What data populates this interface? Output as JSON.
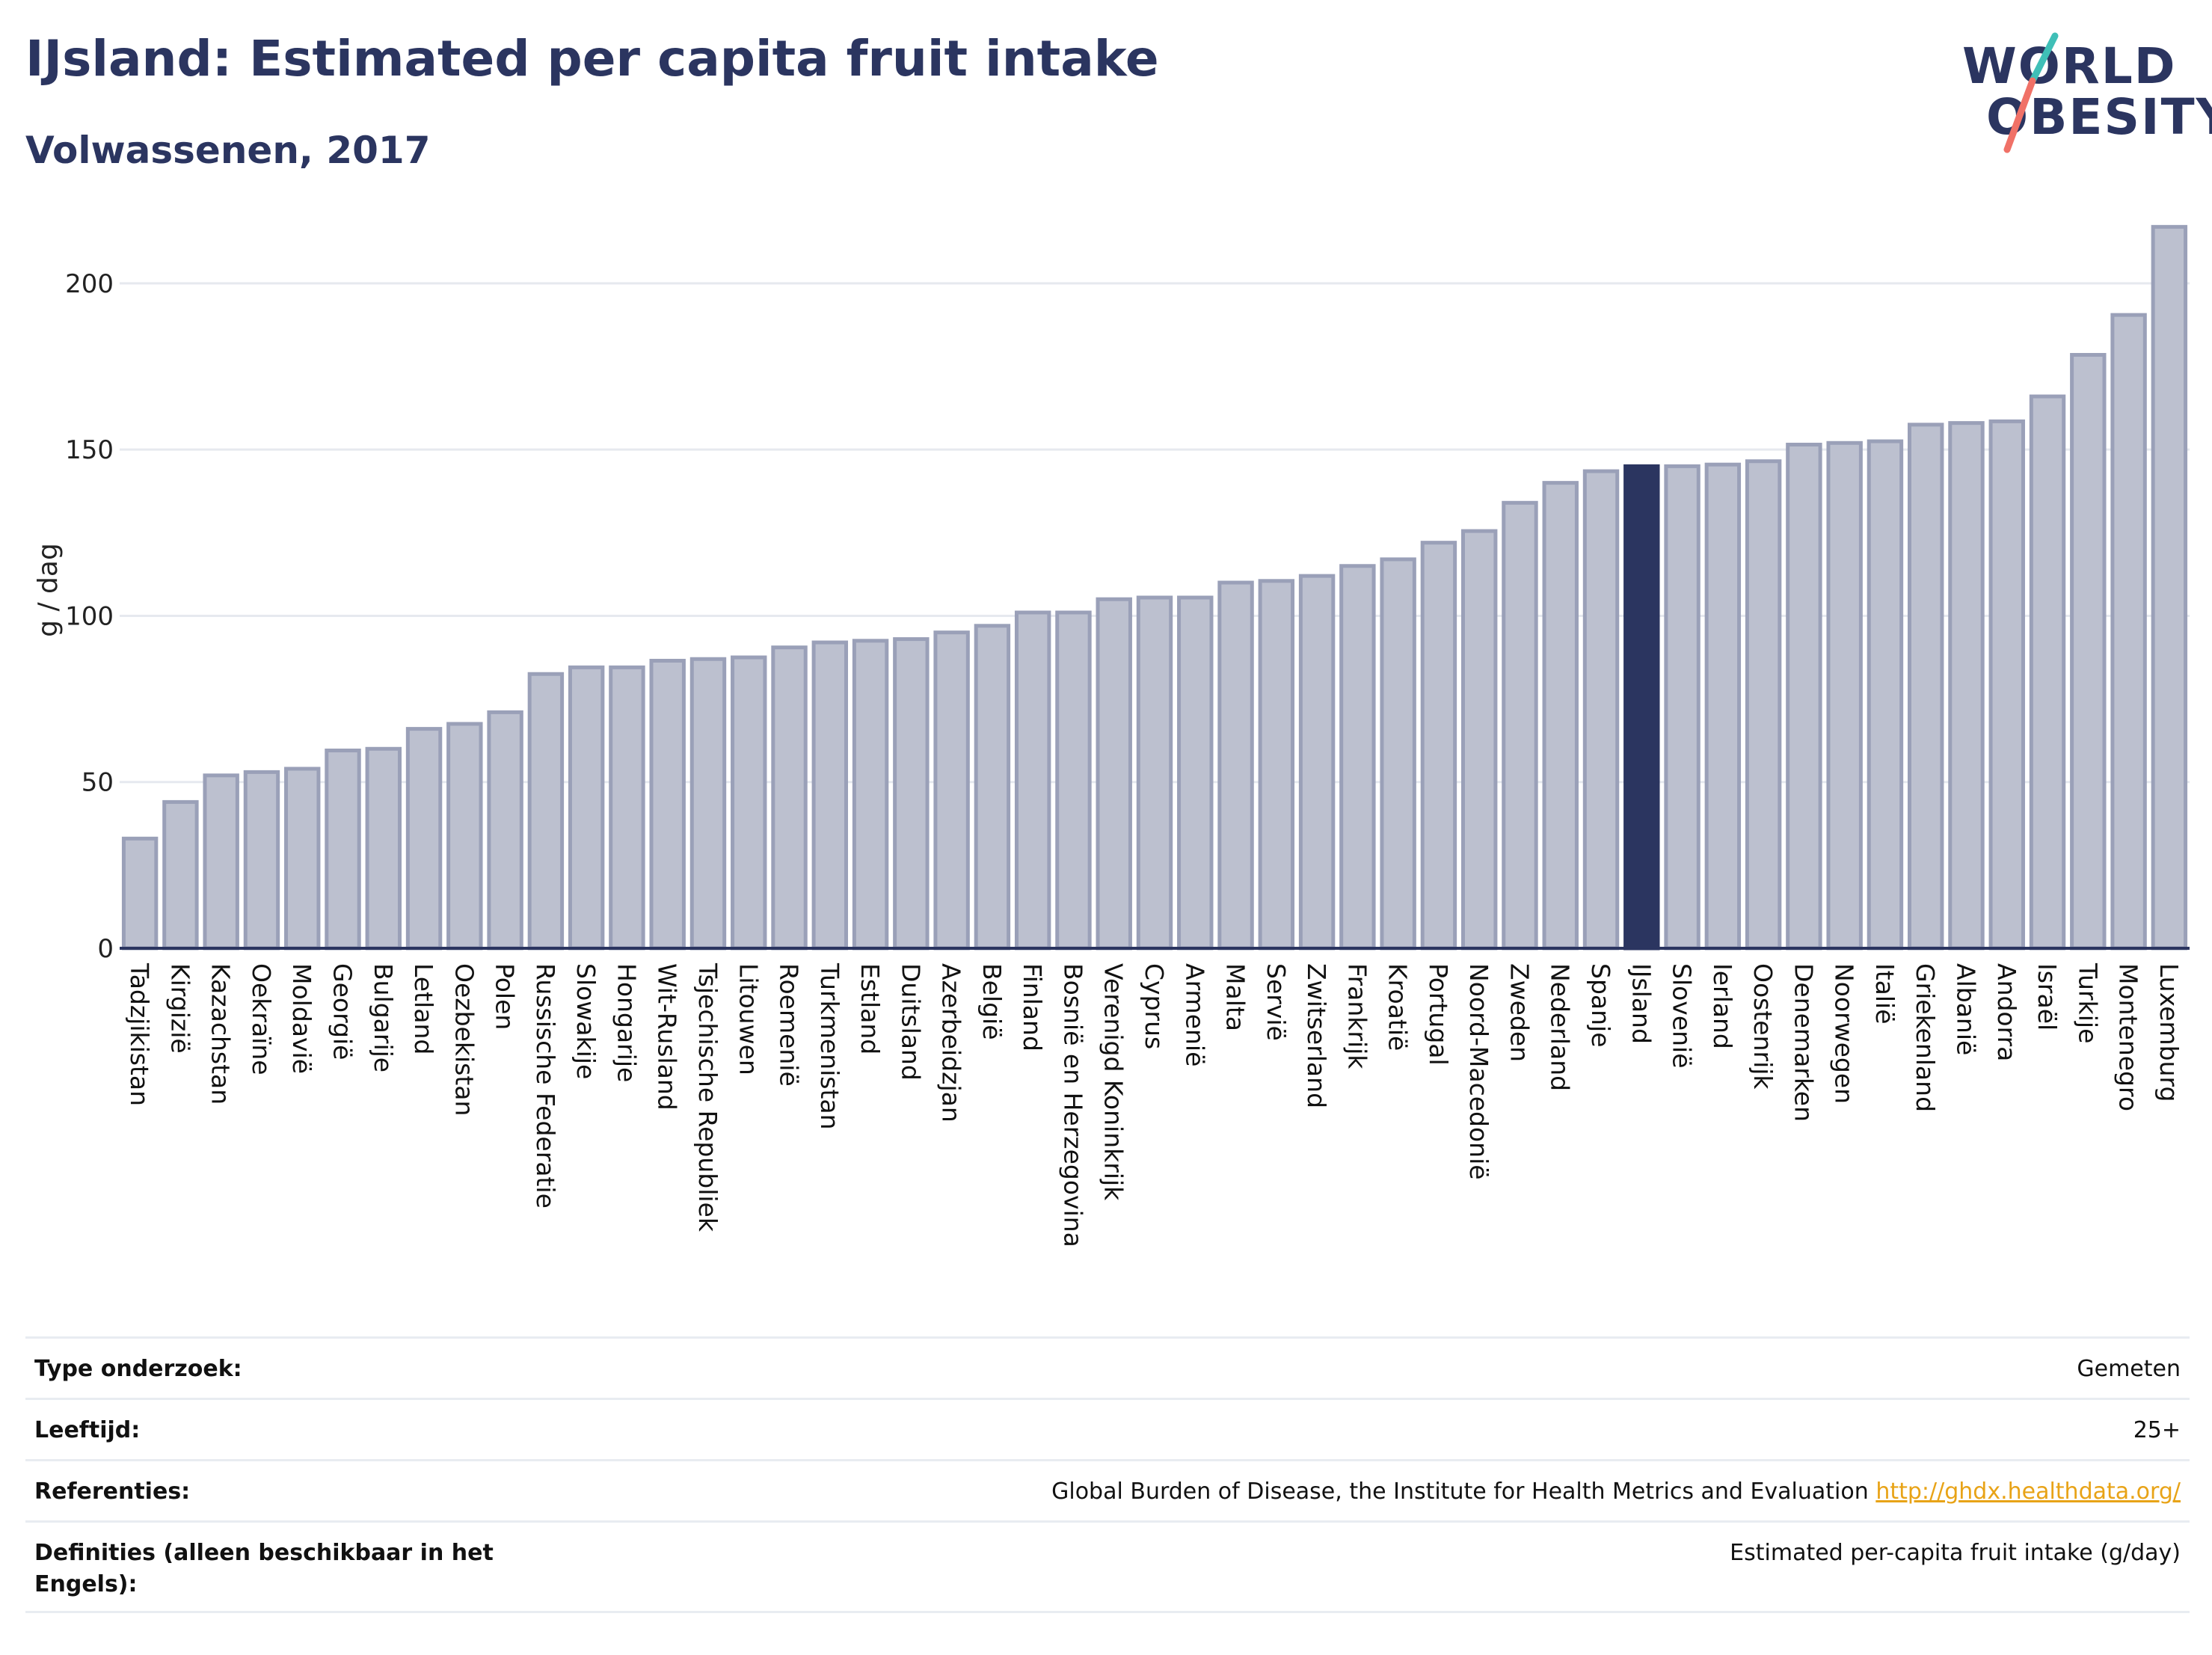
{
  "title": "IJsland: Estimated per capita fruit intake",
  "subtitle": "Volwassenen, 2017",
  "logo": {
    "line1": "WORLD",
    "line2": "OBESITY"
  },
  "colors": {
    "highlight": "#2b3560",
    "bar": "#bcc0cf",
    "bar_stroke": "#9aa0b8",
    "accent_teal": "#3fbfb7",
    "accent_coral": "#f07167",
    "link": "#e8a317"
  },
  "chart_data": {
    "type": "bar",
    "ylabel": "g / dag",
    "ylim": [
      0,
      220
    ],
    "yticks": [
      0,
      50,
      100,
      150,
      200
    ],
    "grid": true,
    "highlight": "IJsland",
    "categories": [
      "Tadzjikistan",
      "Kirgizië",
      "Kazachstan",
      "Oekraïne",
      "Moldavië",
      "Georgië",
      "Bulgarije",
      "Letland",
      "Oezbekistan",
      "Polen",
      "Russische Federatie",
      "Slowakije",
      "Hongarije",
      "Wit-Rusland",
      "Tsjechische Republiek",
      "Litouwen",
      "Roemenië",
      "Turkmenistan",
      "Estland",
      "Duitsland",
      "Azerbeidzjan",
      "België",
      "Finland",
      "Bosnië en Herzegovina",
      "Verenigd Koninkrijk",
      "Cyprus",
      "Armenië",
      "Malta",
      "Servië",
      "Zwitserland",
      "Frankrijk",
      "Kroatië",
      "Portugal",
      "Noord-Macedonië",
      "Zweden",
      "Nederland",
      "Spanje",
      "IJsland",
      "Slovenië",
      "Ierland",
      "Oostenrijk",
      "Denemarken",
      "Noorwegen",
      "Italië",
      "Griekenland",
      "Albanië",
      "Andorra",
      "Israël",
      "Turkije",
      "Montenegro",
      "Luxemburg"
    ],
    "values": [
      33,
      44,
      52,
      53,
      54,
      59.5,
      60,
      66,
      67.5,
      71,
      82.5,
      84.5,
      84.5,
      86.5,
      87,
      87.5,
      90.5,
      92,
      92.5,
      93,
      95,
      97,
      101,
      101,
      105,
      105.5,
      105.5,
      110,
      110.5,
      112,
      115,
      117,
      122,
      125.5,
      134,
      140,
      143.5,
      145,
      145,
      145.5,
      146.5,
      151.5,
      152,
      152.5,
      157.5,
      158,
      158.5,
      166,
      178.5,
      190.5,
      217
    ]
  },
  "meta": [
    {
      "key": "Type onderzoek:",
      "value": "Gemeten"
    },
    {
      "key": "Leeftijd:",
      "value": "25+"
    },
    {
      "key": "Referenties:",
      "value": "Global Burden of Disease, the Institute for Health Metrics and Evaluation",
      "link": "http://ghdx.healthdata.org/"
    },
    {
      "key": "Definities (alleen beschikbaar in het Engels):",
      "value": "Estimated per-capita fruit intake (g/day)"
    }
  ]
}
